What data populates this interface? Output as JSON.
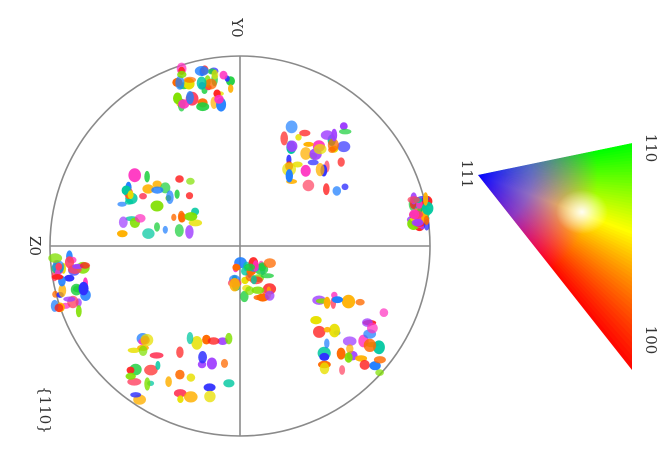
{
  "pole_figure": {
    "plane_label": "{110}",
    "axis_label_top": "Y0",
    "axis_label_left": "Z0",
    "frame_color": "#8a8a8a"
  },
  "ipf_legend": {
    "vertex_100": "100",
    "vertex_110": "110",
    "vertex_111": "111",
    "color_100": "#ff0000",
    "color_110": "#00d000",
    "color_111": "#0000ff"
  }
}
